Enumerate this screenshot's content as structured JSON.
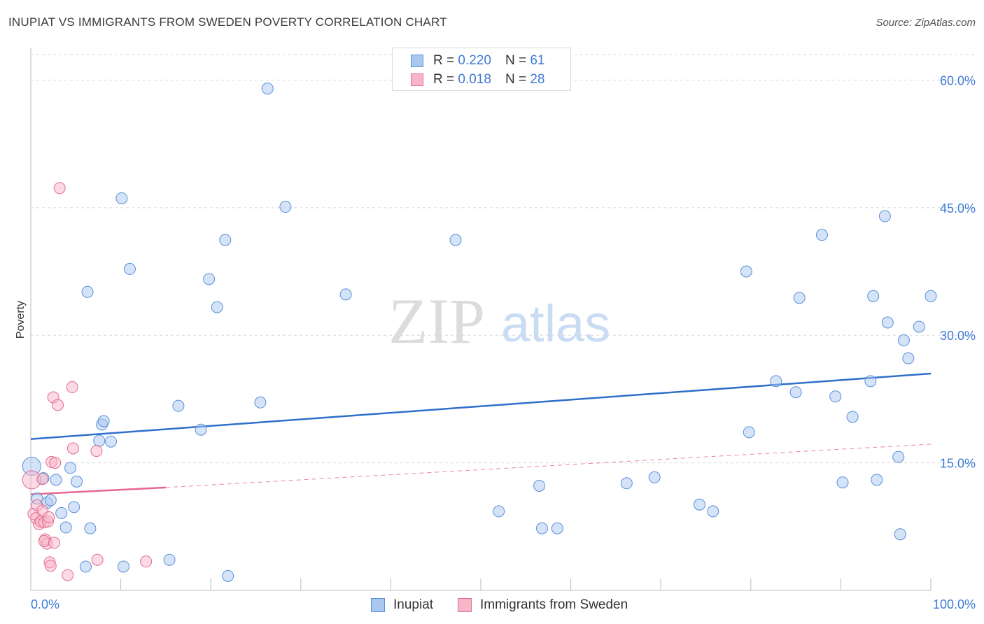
{
  "header": {
    "title": "INUPIAT VS IMMIGRANTS FROM SWEDEN POVERTY CORRELATION CHART",
    "source": "Source: ZipAtlas.com"
  },
  "legend_top": {
    "rows": [
      {
        "r_label": "R =",
        "r_value": "0.220",
        "n_label": "N =",
        "n_value": "61"
      },
      {
        "r_label": "R =",
        "r_value": "0.018",
        "n_label": "N =",
        "n_value": "28"
      }
    ]
  },
  "legend_bottom": {
    "series1": "Inupiat",
    "series2": "Immigrants from Sweden"
  },
  "watermark": {
    "zip": "ZIP",
    "atlas": "atlas"
  },
  "colors": {
    "inupiat_fill": "#a9c8f0",
    "inupiat_stroke": "#5a8fd8",
    "inupiat_line": "#2f6fcc",
    "sweden_fill": "#f7b6c8",
    "sweden_stroke": "#e36c93",
    "sweden_line": "#e8668f",
    "grid": "#d8d8d8",
    "tick_text": "#3e7bd6"
  },
  "chart_data": {
    "type": "scatter",
    "title": "INUPIAT VS IMMIGRANTS FROM SWEDEN POVERTY CORRELATION CHART",
    "xlabel": "",
    "ylabel": "Poverty",
    "xlim": [
      0,
      100
    ],
    "ylim": [
      0,
      63
    ],
    "x_tick_labels": [
      "0.0%",
      "100.0%"
    ],
    "y_ticks": [
      15,
      30,
      45,
      60
    ],
    "y_tick_labels": [
      "15.0%",
      "30.0%",
      "45.0%",
      "60.0%"
    ],
    "series": [
      {
        "name": "Inupiat",
        "R": 0.22,
        "N": 61,
        "trend": {
          "x": [
            0,
            100
          ],
          "y": [
            17.8,
            25.5
          ],
          "style": "solid"
        },
        "points": [
          {
            "x": 0.1,
            "y": 14.6,
            "s": "large"
          },
          {
            "x": 0.7,
            "y": 10.8
          },
          {
            "x": 1.4,
            "y": 13.2
          },
          {
            "x": 1.8,
            "y": 10.3
          },
          {
            "x": 2.2,
            "y": 10.6
          },
          {
            "x": 2.8,
            "y": 13.0
          },
          {
            "x": 3.4,
            "y": 9.1
          },
          {
            "x": 3.9,
            "y": 7.4
          },
          {
            "x": 4.4,
            "y": 14.4
          },
          {
            "x": 4.8,
            "y": 9.8
          },
          {
            "x": 5.1,
            "y": 12.8
          },
          {
            "x": 6.1,
            "y": 2.8
          },
          {
            "x": 6.3,
            "y": 35.1
          },
          {
            "x": 6.6,
            "y": 7.3
          },
          {
            "x": 7.6,
            "y": 17.6
          },
          {
            "x": 7.9,
            "y": 19.5
          },
          {
            "x": 8.1,
            "y": 19.9
          },
          {
            "x": 8.9,
            "y": 17.5
          },
          {
            "x": 10.1,
            "y": 46.1
          },
          {
            "x": 10.3,
            "y": 2.8
          },
          {
            "x": 11.0,
            "y": 37.8
          },
          {
            "x": 15.4,
            "y": 3.6
          },
          {
            "x": 16.4,
            "y": 21.7
          },
          {
            "x": 18.9,
            "y": 18.9
          },
          {
            "x": 19.8,
            "y": 36.6
          },
          {
            "x": 20.7,
            "y": 33.3
          },
          {
            "x": 21.6,
            "y": 41.2
          },
          {
            "x": 21.9,
            "y": 1.7
          },
          {
            "x": 25.5,
            "y": 22.1
          },
          {
            "x": 26.3,
            "y": 59.0
          },
          {
            "x": 28.3,
            "y": 45.1
          },
          {
            "x": 35.0,
            "y": 34.8
          },
          {
            "x": 47.2,
            "y": 41.2
          },
          {
            "x": 52.0,
            "y": 9.3
          },
          {
            "x": 56.5,
            "y": 12.3
          },
          {
            "x": 56.8,
            "y": 7.3
          },
          {
            "x": 58.5,
            "y": 7.3
          },
          {
            "x": 66.2,
            "y": 12.6
          },
          {
            "x": 69.3,
            "y": 13.3
          },
          {
            "x": 74.3,
            "y": 10.1
          },
          {
            "x": 75.8,
            "y": 9.3
          },
          {
            "x": 79.5,
            "y": 37.5
          },
          {
            "x": 79.8,
            "y": 18.6
          },
          {
            "x": 82.8,
            "y": 24.6
          },
          {
            "x": 85.0,
            "y": 23.3
          },
          {
            "x": 85.4,
            "y": 34.4
          },
          {
            "x": 87.9,
            "y": 41.8
          },
          {
            "x": 89.4,
            "y": 22.8
          },
          {
            "x": 90.2,
            "y": 12.7
          },
          {
            "x": 91.3,
            "y": 20.4
          },
          {
            "x": 93.3,
            "y": 24.6
          },
          {
            "x": 93.6,
            "y": 34.6
          },
          {
            "x": 94.0,
            "y": 13.0
          },
          {
            "x": 94.9,
            "y": 44.0
          },
          {
            "x": 95.2,
            "y": 31.5
          },
          {
            "x": 96.4,
            "y": 15.7
          },
          {
            "x": 96.6,
            "y": 6.6
          },
          {
            "x": 97.0,
            "y": 29.4
          },
          {
            "x": 97.5,
            "y": 27.3
          },
          {
            "x": 98.7,
            "y": 31.0
          },
          {
            "x": 100.0,
            "y": 34.6
          }
        ]
      },
      {
        "name": "Immigrants from Sweden",
        "R": 0.018,
        "N": 28,
        "trend_solid": {
          "x": [
            0,
            15
          ],
          "y": [
            11.3,
            12.1
          ],
          "style": "solid"
        },
        "trend_dashed": {
          "x": [
            15,
            100
          ],
          "y": [
            12.1,
            17.2
          ],
          "style": "dashed"
        },
        "points": [
          {
            "x": 0.1,
            "y": 13.0,
            "s": "large"
          },
          {
            "x": 0.3,
            "y": 9.0
          },
          {
            "x": 0.6,
            "y": 8.5
          },
          {
            "x": 0.7,
            "y": 10.0
          },
          {
            "x": 0.9,
            "y": 7.8
          },
          {
            "x": 1.1,
            "y": 8.1
          },
          {
            "x": 1.3,
            "y": 9.4
          },
          {
            "x": 1.5,
            "y": 8.0
          },
          {
            "x": 1.6,
            "y": 6.0
          },
          {
            "x": 1.8,
            "y": 5.5
          },
          {
            "x": 1.9,
            "y": 8.1
          },
          {
            "x": 2.0,
            "y": 8.6
          },
          {
            "x": 2.1,
            "y": 3.3
          },
          {
            "x": 2.2,
            "y": 2.9
          },
          {
            "x": 2.3,
            "y": 15.1
          },
          {
            "x": 2.5,
            "y": 22.7
          },
          {
            "x": 2.7,
            "y": 15.0
          },
          {
            "x": 3.0,
            "y": 21.8
          },
          {
            "x": 3.2,
            "y": 47.3
          },
          {
            "x": 4.1,
            "y": 1.8
          },
          {
            "x": 1.5,
            "y": 5.8
          },
          {
            "x": 2.6,
            "y": 5.6
          },
          {
            "x": 4.7,
            "y": 16.7
          },
          {
            "x": 4.6,
            "y": 23.9
          },
          {
            "x": 7.3,
            "y": 16.4
          },
          {
            "x": 7.4,
            "y": 3.6
          },
          {
            "x": 12.8,
            "y": 3.4
          },
          {
            "x": 1.3,
            "y": 13.1
          }
        ]
      }
    ]
  }
}
